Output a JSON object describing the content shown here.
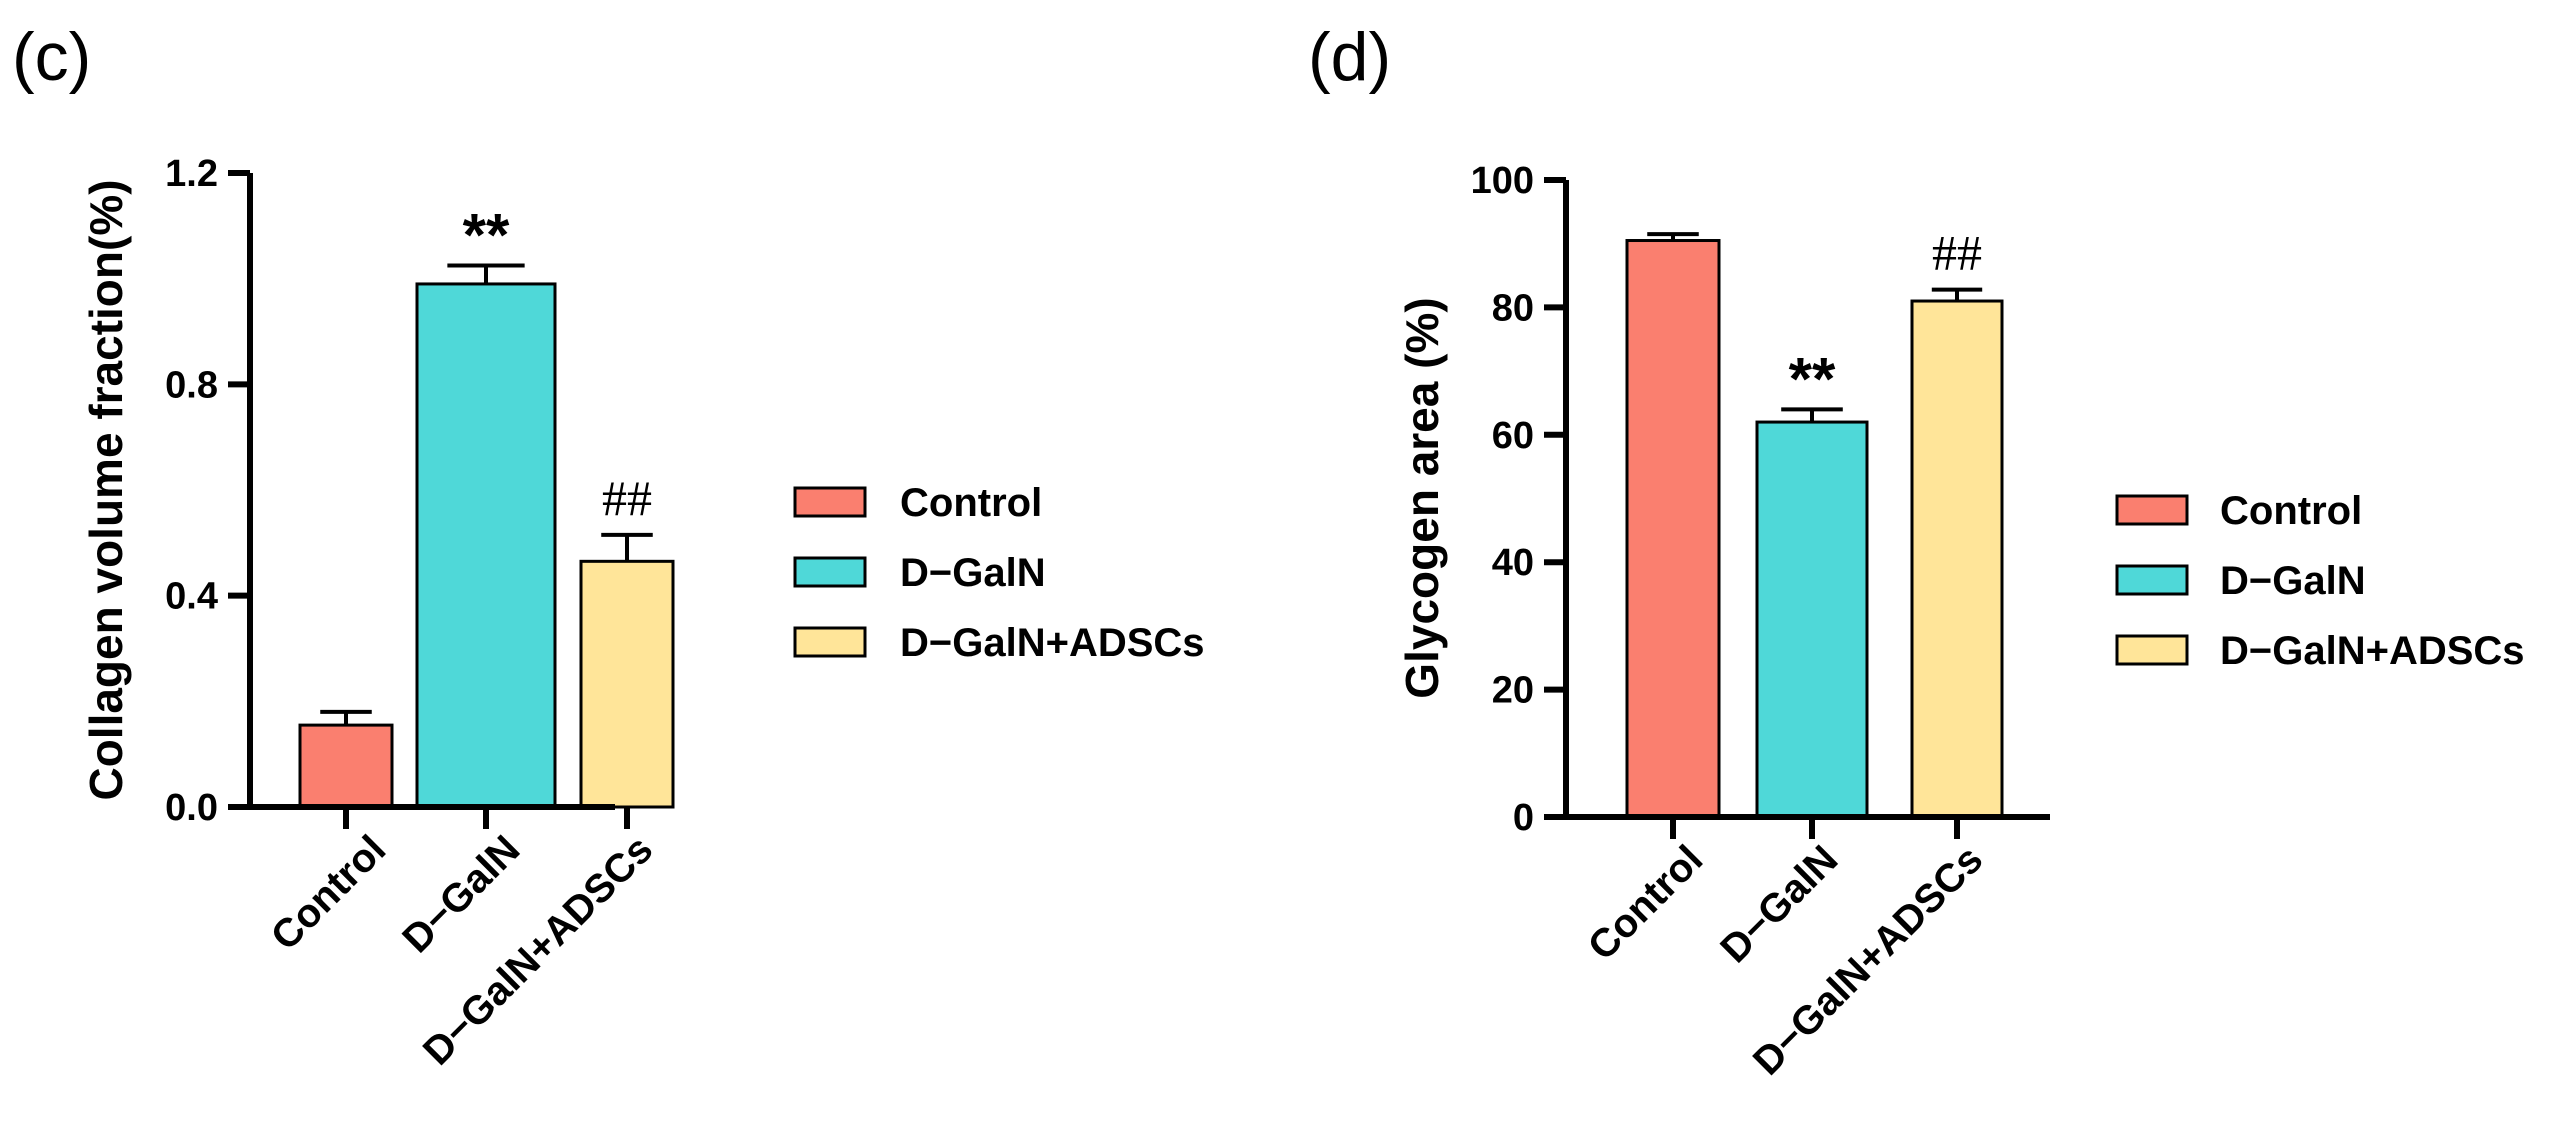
{
  "colors": {
    "control": "#FA7F6F",
    "dgaln": "#4FD8D8",
    "dgaln_adscs": "#FFE599",
    "axis": "#000000"
  },
  "chart_data": [
    {
      "type": "bar",
      "panel": "(c)",
      "title": "",
      "xlabel": "",
      "ylabel": "Collagen volume fraction(%)",
      "ylim": [
        0,
        1.2
      ],
      "yticks": [
        0.0,
        0.4,
        0.8,
        1.2
      ],
      "ytick_labels": [
        "0.0",
        "0.4",
        "0.8",
        "1.2"
      ],
      "categories": [
        "Control",
        "D−GalN",
        "D−GalN+ADSCs"
      ],
      "values": [
        0.155,
        0.99,
        0.465
      ],
      "errors": [
        0.025,
        0.035,
        0.05
      ],
      "annotations": [
        "",
        "**",
        "##"
      ],
      "legend": [
        "Control",
        "D−GalN",
        "D−GalN+ADSCs"
      ],
      "legend_position": "right"
    },
    {
      "type": "bar",
      "panel": "(d)",
      "title": "",
      "xlabel": "",
      "ylabel": "Glycogen area (%)",
      "ylim": [
        0,
        100
      ],
      "yticks": [
        0,
        20,
        40,
        60,
        80,
        100
      ],
      "ytick_labels": [
        "0",
        "20",
        "40",
        "60",
        "80",
        "100"
      ],
      "categories": [
        "Control",
        "D−GalN",
        "D−GalN+ADSCs"
      ],
      "values": [
        90.5,
        62,
        81
      ],
      "errors": [
        1.0,
        2.0,
        1.8
      ],
      "annotations": [
        "",
        "**",
        "##"
      ],
      "legend": [
        "Control",
        "D−GalN",
        "D−GalN+ADSCs"
      ],
      "legend_position": "right"
    }
  ]
}
